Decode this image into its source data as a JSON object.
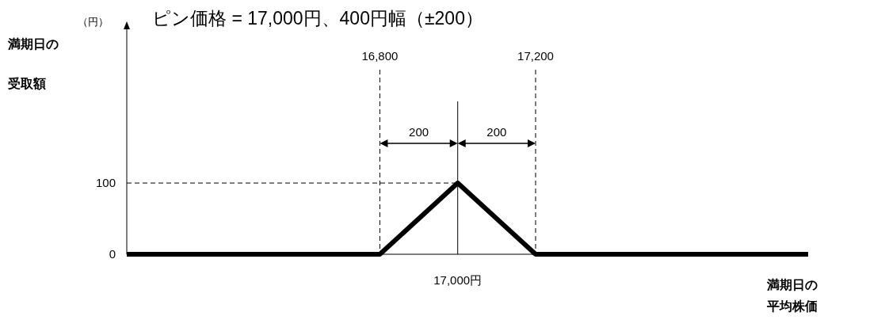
{
  "chart_data": {
    "type": "line",
    "title": "ピン価格 = 17,000円、400円幅（±200）",
    "ylabel": "満期日の受取額",
    "xlabel": "満期日の平均株価",
    "x": [
      16150,
      16800,
      17000,
      17200,
      17900
    ],
    "series": [
      {
        "color": "#000000",
        "values": [
          0,
          0,
          100,
          0,
          0
        ]
      }
    ],
    "xlim": [
      16150,
      17900
    ],
    "xticks": [
      {
        "value": 16800,
        "label": "16,800"
      },
      {
        "value": 17200,
        "label": "17,200"
      }
    ],
    "ylim": [
      0,
      318
    ],
    "yticks": [
      0,
      100
    ],
    "ref_lines": [
      {
        "axis": "x",
        "value": 16800,
        "label": null,
        "line_style": "dashed",
        "color": "#000000"
      },
      {
        "axis": "x",
        "value": 17000,
        "label": null,
        "line_style": "solid",
        "color": "#000000"
      },
      {
        "axis": "x",
        "value": 17200,
        "label": null,
        "line_style": "dashed",
        "color": "#000000"
      },
      {
        "axis": "y",
        "value": 100,
        "label": null,
        "line_style": "dashed",
        "color": "#000000"
      }
    ],
    "annotations": [
      "（円）",
      "200",
      "200",
      {
        "text": "17,000円",
        "x": 17000,
        "y": 0
      }
    ]
  }
}
